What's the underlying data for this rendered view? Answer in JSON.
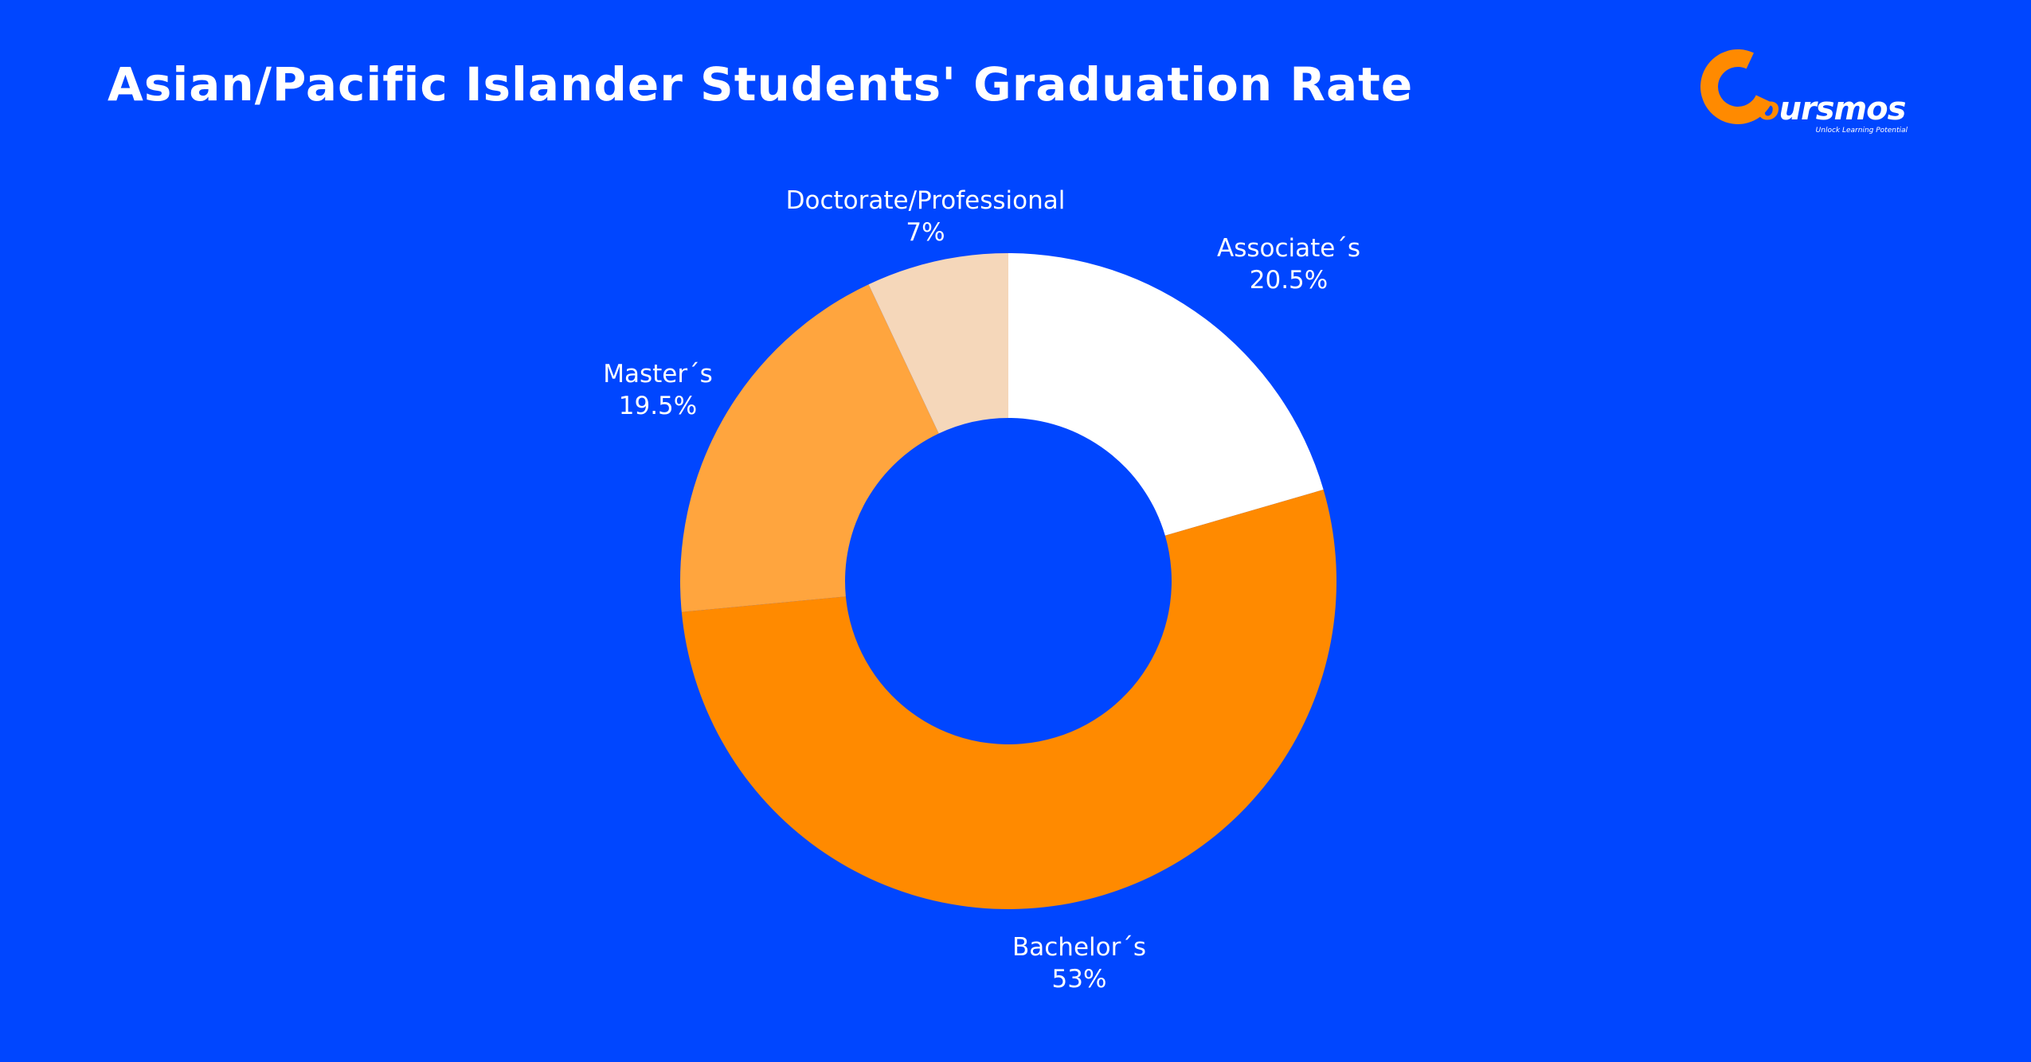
{
  "header": {
    "title": "Asian/Pacific Islander Students' Graduation Rate"
  },
  "logo": {
    "word_prefix": "C",
    "word_o": "o",
    "word_rest": "ursmos",
    "tagline": "Unlock Learning Potential"
  },
  "chart_data": {
    "type": "pie",
    "title": "Asian/Pacific Islander Students' Graduation Rate",
    "donut": true,
    "unit": "%",
    "slices": [
      {
        "label": "Associate´s",
        "value": 20.5,
        "value_label": "20.5%",
        "color": "#FFFFFF"
      },
      {
        "label": "Bachelor´s",
        "value": 53,
        "value_label": "53%",
        "color": "#FF8A00"
      },
      {
        "label": "Master´s",
        "value": 19.5,
        "value_label": "19.5%",
        "color": "#FFA53E"
      },
      {
        "label": "Doctorate/Professional",
        "value": 7,
        "value_label": "7%",
        "color": "#F5D7BA"
      }
    ]
  },
  "colors": {
    "background": "#0046FF",
    "text": "#FFFFFF",
    "accent": "#FF8A00"
  }
}
